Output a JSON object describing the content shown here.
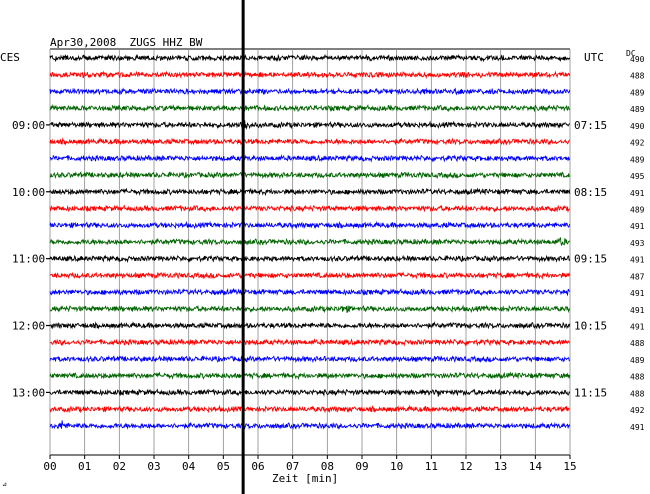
{
  "chart_data": {
    "type": "line",
    "title": "Apr30,2008  ZUGS HHZ BW",
    "left_label": "CES",
    "right_label": "UTC",
    "dc_label": "DC",
    "xlabel": "Zeit [min]",
    "x_ticks": [
      "00",
      "01",
      "02",
      "03",
      "04",
      "05",
      "06",
      "07",
      "08",
      "09",
      "10",
      "11",
      "12",
      "13",
      "14",
      "15"
    ],
    "xlim": [
      0,
      15
    ],
    "trace_colors": [
      "#000000",
      "#ff0000",
      "#0000ff",
      "#006400"
    ],
    "left_time_labels": [
      {
        "row": 4,
        "text": "09:00"
      },
      {
        "row": 8,
        "text": "10:00"
      },
      {
        "row": 12,
        "text": "11:00"
      },
      {
        "row": 16,
        "text": "12:00"
      },
      {
        "row": 20,
        "text": "13:00"
      }
    ],
    "right_time_labels": [
      {
        "row": 4,
        "text": "07:15"
      },
      {
        "row": 8,
        "text": "08:15"
      },
      {
        "row": 12,
        "text": "09:15"
      },
      {
        "row": 16,
        "text": "10:15"
      },
      {
        "row": 20,
        "text": "11:15"
      }
    ],
    "dc_values": [
      490,
      488,
      489,
      489,
      490,
      492,
      489,
      495,
      491,
      489,
      491,
      493,
      491,
      487,
      491,
      491,
      491,
      488,
      489,
      488,
      488,
      492,
      491
    ],
    "events": [
      {
        "row": 4,
        "minute": 5.6,
        "amplitude": 10
      },
      {
        "row": 11,
        "minute": 14.75,
        "amplitude": 4
      },
      {
        "row": 15,
        "minute": 8.5,
        "amplitude": 5
      },
      {
        "row": 22,
        "minute": 0.35,
        "amplitude": 4
      },
      {
        "row": 20,
        "minute": 11.2,
        "amplitude": 3
      }
    ],
    "marker_minute": 5.6,
    "small_mark": "⊿"
  }
}
